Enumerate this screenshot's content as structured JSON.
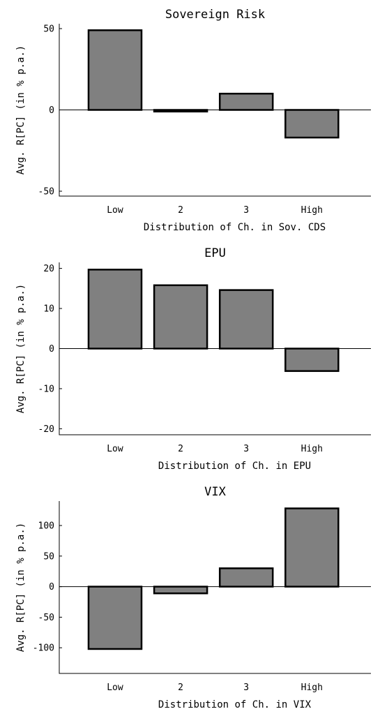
{
  "chart_data": [
    {
      "type": "bar",
      "title": "Sovereign Risk",
      "xlabel": "Distribution of Ch. in Sov. CDS",
      "ylabel": "Avg. R[PC] (in % p.a.)",
      "categories": [
        "Low",
        "2",
        "3",
        "High"
      ],
      "values": [
        49,
        -1,
        10,
        -17
      ],
      "ylim": [
        -53,
        53
      ],
      "yticks": [
        -50,
        0,
        50
      ],
      "grid": false,
      "legend": "none"
    },
    {
      "type": "bar",
      "title": "EPU",
      "xlabel": "Distribution of Ch. in EPU",
      "ylabel": "Avg. R[PC] (in % p.a.)",
      "categories": [
        "Low",
        "2",
        "3",
        "High"
      ],
      "values": [
        19.7,
        15.8,
        14.6,
        -5.6
      ],
      "ylim": [
        -21.5,
        21.5
      ],
      "yticks": [
        -20,
        -10,
        0,
        10,
        20
      ],
      "grid": false,
      "legend": "none"
    },
    {
      "type": "bar",
      "title": "VIX",
      "xlabel": "Distribution of Ch. in VIX",
      "ylabel": "Avg. R[PC] (in % p.a.)",
      "categories": [
        "Low",
        "2",
        "3",
        "High"
      ],
      "values": [
        -102,
        -11,
        30,
        128
      ],
      "ylim": [
        -142,
        140
      ],
      "yticks": [
        -100,
        -50,
        0,
        50,
        100
      ],
      "grid": false,
      "legend": "none"
    }
  ]
}
